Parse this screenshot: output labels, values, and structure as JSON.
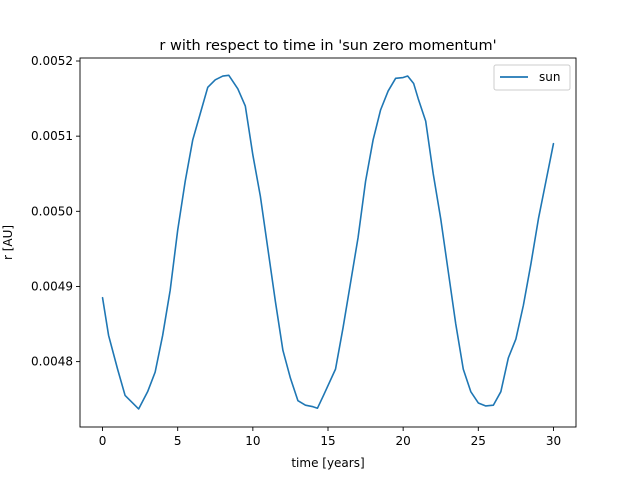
{
  "chart_data": {
    "type": "line",
    "title": "r with respect to time in 'sun zero momentum'",
    "xlabel": "time [years]",
    "ylabel": "r [AU]",
    "xlim": [
      -1.5,
      31.5
    ],
    "ylim": [
      0.004713,
      0.005204
    ],
    "xticks": [
      0,
      5,
      10,
      15,
      20,
      25,
      30
    ],
    "xtick_labels": [
      "0",
      "5",
      "10",
      "15",
      "20",
      "25",
      "30"
    ],
    "yticks": [
      0.0048,
      0.0049,
      0.005,
      0.0051,
      0.0052
    ],
    "ytick_labels": [
      "0.0048",
      "0.0049",
      "0.0050",
      "0.0051",
      "0.0052"
    ],
    "grid": false,
    "legend_position": "top-right",
    "series": [
      {
        "name": "sun",
        "color": "#1f77b4",
        "x": [
          0,
          0.4,
          1.0,
          1.5,
          2.0,
          2.4,
          3.0,
          3.5,
          4.0,
          4.5,
          5.0,
          5.5,
          6.0,
          6.5,
          7.0,
          7.5,
          8.0,
          8.4,
          9.0,
          9.5,
          10.0,
          10.5,
          11.0,
          11.5,
          12.0,
          12.5,
          13.0,
          13.5,
          14.0,
          14.3,
          14.7,
          15.5,
          16.0,
          16.5,
          17.0,
          17.5,
          18.0,
          18.5,
          19.0,
          19.5,
          20.0,
          20.3,
          20.7,
          21.0,
          21.5,
          22.0,
          22.5,
          23.0,
          23.5,
          24.0,
          24.5,
          25.0,
          25.5,
          26.0,
          26.5,
          27.0,
          27.5,
          28.0,
          28.5,
          29.0,
          29.5,
          30.0
        ],
        "y": [
          0.004885,
          0.004835,
          0.00479,
          0.004755,
          0.004745,
          0.004737,
          0.00476,
          0.004786,
          0.004835,
          0.004895,
          0.004975,
          0.00504,
          0.005095,
          0.00513,
          0.005165,
          0.005175,
          0.00518,
          0.005181,
          0.005163,
          0.00514,
          0.005075,
          0.00502,
          0.00495,
          0.00488,
          0.004815,
          0.004778,
          0.004748,
          0.004742,
          0.00474,
          0.004738,
          0.004755,
          0.00479,
          0.004845,
          0.004905,
          0.004965,
          0.00504,
          0.005095,
          0.005135,
          0.00516,
          0.005177,
          0.005178,
          0.00518,
          0.00517,
          0.00515,
          0.00512,
          0.00505,
          0.00499,
          0.00492,
          0.00485,
          0.00479,
          0.00476,
          0.004745,
          0.004741,
          0.004742,
          0.00476,
          0.004805,
          0.00483,
          0.004875,
          0.00493,
          0.00499,
          0.00504,
          0.00509
        ]
      }
    ]
  }
}
